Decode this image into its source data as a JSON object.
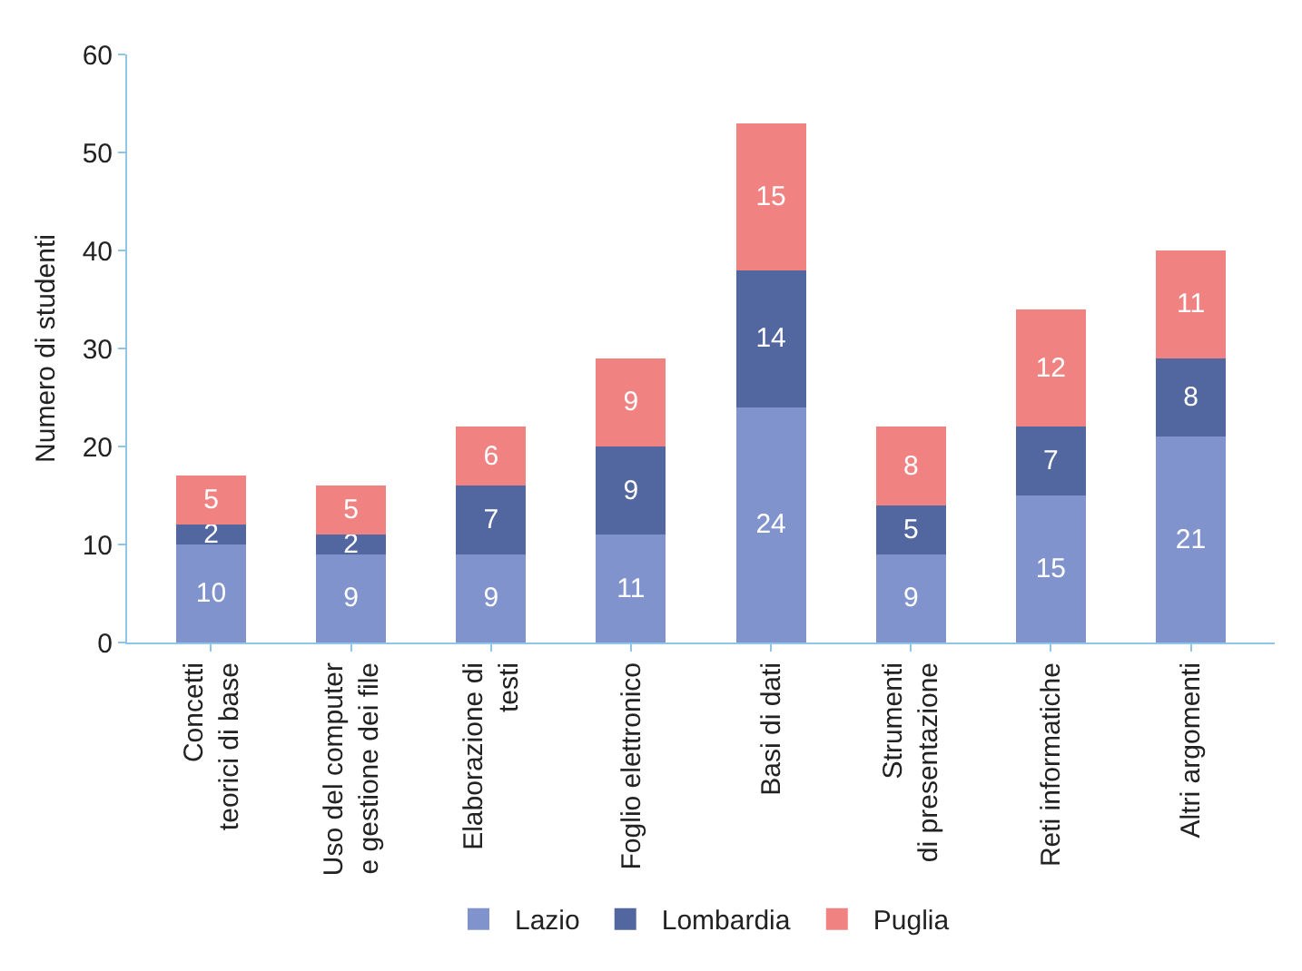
{
  "chart_data": {
    "type": "bar",
    "stacked": true,
    "ylabel": "Numero di studenti",
    "categories": [
      "Concetti\nteorici di base",
      "Uso del computer\ne gestione dei file",
      "Elaborazione di\ntesti",
      "Foglio elettronico",
      "Basi di dati",
      "Strumenti\ndi presentazione",
      "Reti informatiche",
      "Altri argomenti"
    ],
    "series": [
      {
        "name": "Lazio",
        "color": "#8193cc",
        "values": [
          10,
          9,
          9,
          11,
          24,
          9,
          15,
          21
        ]
      },
      {
        "name": "Lombardia",
        "color": "#52679f",
        "values": [
          2,
          2,
          7,
          9,
          14,
          5,
          7,
          8
        ]
      },
      {
        "name": "Puglia",
        "color": "#f08282",
        "values": [
          5,
          5,
          6,
          9,
          15,
          8,
          12,
          11
        ]
      }
    ],
    "ylim": [
      0,
      60
    ],
    "yticks": [
      0,
      10,
      20,
      30,
      40,
      50,
      60
    ],
    "grid": false,
    "legend": "bottom",
    "data_labels": true
  }
}
